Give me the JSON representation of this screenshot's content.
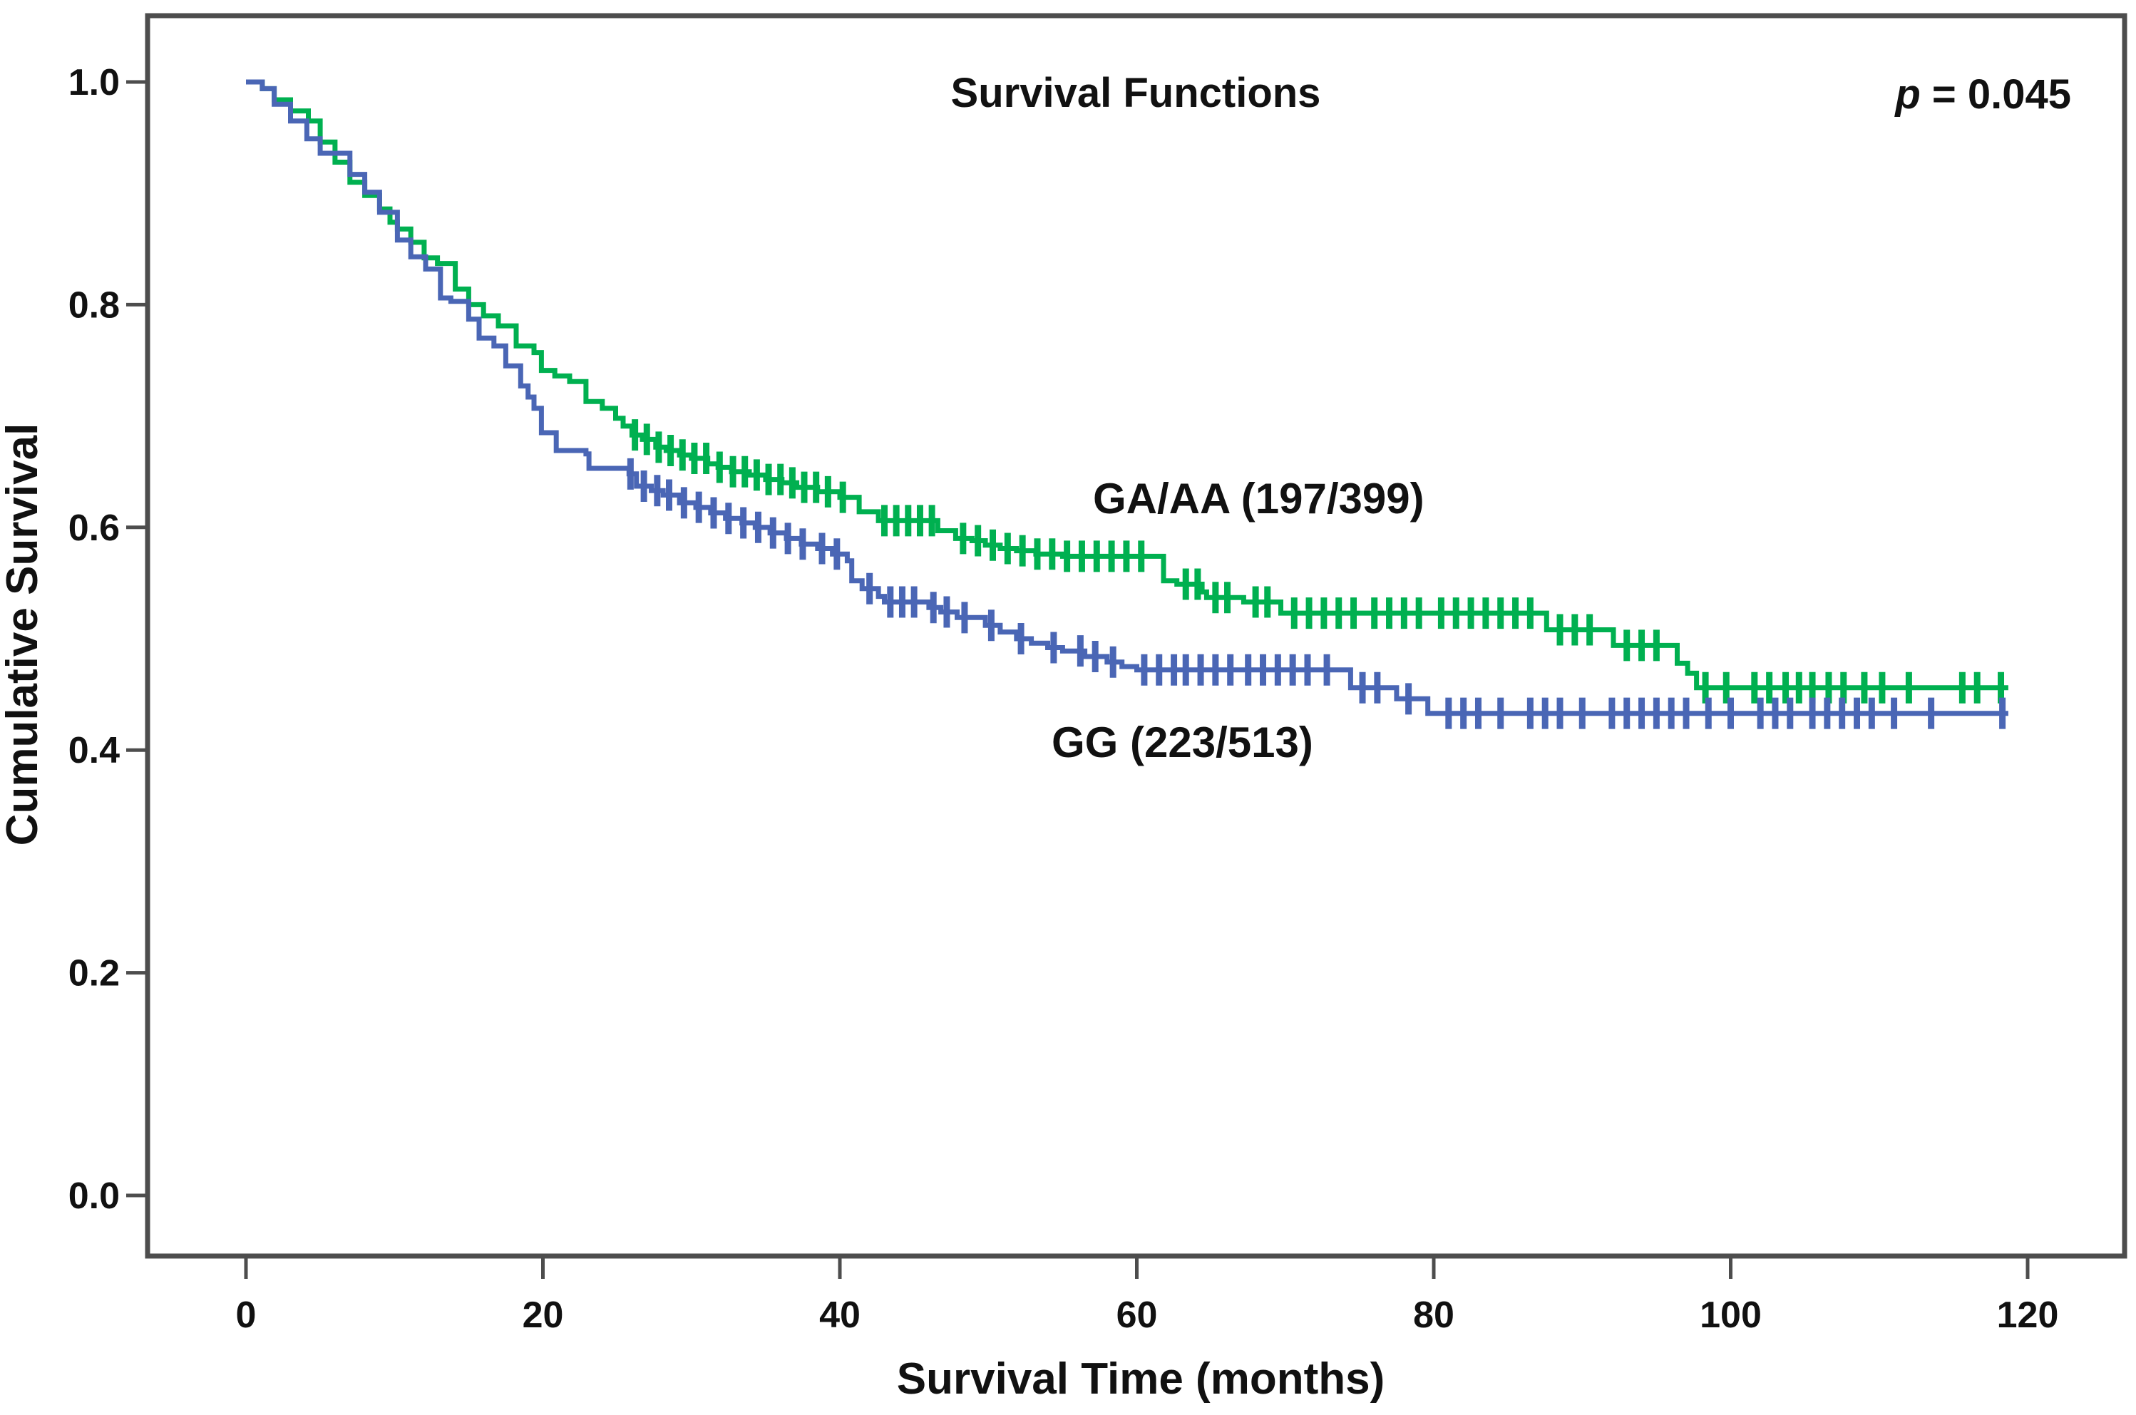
{
  "header": {
    "title": "Survival Functions",
    "p_italic": "p",
    "p_rest": " = 0.045"
  },
  "axes": {
    "x": {
      "label": "Survival Time (months)",
      "ticks": [
        "0",
        "20",
        "40",
        "60",
        "80",
        "100",
        "120"
      ]
    },
    "y": {
      "label": "Cumulative Survival",
      "ticks": [
        "1.0",
        "0.8",
        "0.6",
        "0.4",
        "0.2",
        "0.0"
      ]
    }
  },
  "colors": {
    "ga_aa_green": "#00b050",
    "gg_blue": "#4a66b5",
    "frame_gray": "#4d4d4d",
    "text_black": "#111111"
  },
  "chart_data": {
    "type": "line",
    "subtype": "kaplan-meier-step",
    "title": "Survival Functions",
    "annotation_p_value": "p = 0.045",
    "xlabel": "Survival Time (months)",
    "ylabel": "Cumulative Survival",
    "xlim": [
      0,
      120
    ],
    "ylim": [
      0.0,
      1.0
    ],
    "x_tick_values": [
      0,
      20,
      40,
      60,
      80,
      100,
      120
    ],
    "y_tick_values": [
      1.0,
      0.8,
      0.6,
      0.4,
      0.2,
      0.0
    ],
    "grid": false,
    "legend_position": "inline-curve-labels",
    "series": [
      {
        "name": "GA/AA",
        "label": "GA/AA (197/399)",
        "events_total": "197/399",
        "color": "#00b050",
        "points": [
          [
            0,
            1.0
          ],
          [
            1.1,
            0.994
          ],
          [
            1.9,
            0.984
          ],
          [
            3.0,
            0.974
          ],
          [
            4.2,
            0.965
          ],
          [
            5.0,
            0.946
          ],
          [
            6.0,
            0.928
          ],
          [
            7.0,
            0.91
          ],
          [
            8.0,
            0.898
          ],
          [
            9.0,
            0.886
          ],
          [
            9.7,
            0.874
          ],
          [
            10.2,
            0.868
          ],
          [
            11.1,
            0.856
          ],
          [
            12.0,
            0.842
          ],
          [
            12.9,
            0.837
          ],
          [
            14.1,
            0.814
          ],
          [
            15.0,
            0.8
          ],
          [
            16.0,
            0.79
          ],
          [
            17.0,
            0.781
          ],
          [
            18.2,
            0.763
          ],
          [
            19.4,
            0.757
          ],
          [
            19.9,
            0.741
          ],
          [
            20.8,
            0.736
          ],
          [
            21.8,
            0.731
          ],
          [
            22.9,
            0.713
          ],
          [
            24.0,
            0.707
          ],
          [
            24.9,
            0.698
          ],
          [
            25.4,
            0.691
          ],
          [
            26.0,
            0.683
          ],
          [
            26.7,
            0.679
          ],
          [
            27.6,
            0.672
          ],
          [
            28.3,
            0.669
          ],
          [
            29.2,
            0.665
          ],
          [
            30.0,
            0.662
          ],
          [
            31.1,
            0.657
          ],
          [
            31.8,
            0.654
          ],
          [
            32.7,
            0.65
          ],
          [
            33.9,
            0.647
          ],
          [
            35.0,
            0.643
          ],
          [
            36.1,
            0.64
          ],
          [
            37.1,
            0.636
          ],
          [
            38.5,
            0.632
          ],
          [
            40.0,
            0.627
          ],
          [
            41.3,
            0.614
          ],
          [
            42.6,
            0.606
          ],
          [
            46.6,
            0.597
          ],
          [
            47.8,
            0.59
          ],
          [
            48.9,
            0.588
          ],
          [
            49.8,
            0.584
          ],
          [
            50.8,
            0.581
          ],
          [
            51.9,
            0.579
          ],
          [
            53.2,
            0.576
          ],
          [
            55.0,
            0.574
          ],
          [
            61.8,
            0.552
          ],
          [
            62.7,
            0.549
          ],
          [
            64.4,
            0.542
          ],
          [
            64.7,
            0.537
          ],
          [
            67.2,
            0.533
          ],
          [
            69.7,
            0.523
          ],
          [
            87.6,
            0.508
          ],
          [
            92.1,
            0.494
          ],
          [
            96.4,
            0.478
          ],
          [
            97.1,
            0.469
          ],
          [
            97.7,
            0.456
          ],
          [
            118.7,
            0.456
          ]
        ],
        "censor_times": [
          26.2,
          27,
          27.8,
          28.6,
          29.4,
          30.2,
          31,
          31.9,
          32.8,
          33.6,
          34.4,
          35.2,
          36,
          36.8,
          37.6,
          38.4,
          39.2,
          40.2,
          43,
          43.8,
          44.6,
          45.4,
          46.2,
          48.3,
          49.3,
          50.3,
          51.3,
          52.3,
          53.3,
          54.3,
          55.3,
          56.3,
          57.3,
          58.3,
          59.3,
          60.3,
          63.3,
          64.1,
          65.3,
          66.1,
          68,
          68.8,
          70.6,
          71.6,
          72.6,
          73.6,
          74.6,
          76,
          77,
          78,
          79,
          80.5,
          81.5,
          82.5,
          83.5,
          84.5,
          85.5,
          86.5,
          88.5,
          89.5,
          90.5,
          93,
          94,
          95,
          98.3,
          99.7,
          101.6,
          102.6,
          103.7,
          104.6,
          105.5,
          106.6,
          107.6,
          109,
          110.2,
          112,
          115.6,
          116.6,
          118.2
        ]
      },
      {
        "name": "GG",
        "label": "GG (223/513)",
        "events_total": "223/513",
        "color": "#4a66b5",
        "points": [
          [
            0,
            1.0
          ],
          [
            1.1,
            0.994
          ],
          [
            1.9,
            0.98
          ],
          [
            3.0,
            0.965
          ],
          [
            4.1,
            0.949
          ],
          [
            5.0,
            0.936
          ],
          [
            7.0,
            0.917
          ],
          [
            8.0,
            0.901
          ],
          [
            9.0,
            0.883
          ],
          [
            10.2,
            0.858
          ],
          [
            11.1,
            0.843
          ],
          [
            12.1,
            0.832
          ],
          [
            13.1,
            0.806
          ],
          [
            13.8,
            0.803
          ],
          [
            15.0,
            0.787
          ],
          [
            15.7,
            0.77
          ],
          [
            16.7,
            0.763
          ],
          [
            17.5,
            0.745
          ],
          [
            18.5,
            0.727
          ],
          [
            19.0,
            0.717
          ],
          [
            19.4,
            0.707
          ],
          [
            19.9,
            0.685
          ],
          [
            20.9,
            0.669
          ],
          [
            22.9,
            0.666
          ],
          [
            23.1,
            0.653
          ],
          [
            25.8,
            0.648
          ],
          [
            26.3,
            0.637
          ],
          [
            27.3,
            0.633
          ],
          [
            28.1,
            0.629
          ],
          [
            29.2,
            0.622
          ],
          [
            30.3,
            0.618
          ],
          [
            31.3,
            0.613
          ],
          [
            32.3,
            0.608
          ],
          [
            33.4,
            0.604
          ],
          [
            34.3,
            0.6
          ],
          [
            35.3,
            0.595
          ],
          [
            36.4,
            0.59
          ],
          [
            37.4,
            0.585
          ],
          [
            38.5,
            0.581
          ],
          [
            39.5,
            0.576
          ],
          [
            40.5,
            0.57
          ],
          [
            40.8,
            0.552
          ],
          [
            41.5,
            0.545
          ],
          [
            42.6,
            0.538
          ],
          [
            43.0,
            0.533
          ],
          [
            46.0,
            0.528
          ],
          [
            46.8,
            0.524
          ],
          [
            47.9,
            0.519
          ],
          [
            49.8,
            0.512
          ],
          [
            50.8,
            0.506
          ],
          [
            51.9,
            0.5
          ],
          [
            52.9,
            0.496
          ],
          [
            54.0,
            0.492
          ],
          [
            55.0,
            0.489
          ],
          [
            56.5,
            0.484
          ],
          [
            58.0,
            0.479
          ],
          [
            59.0,
            0.475
          ],
          [
            60.0,
            0.472
          ],
          [
            74.4,
            0.456
          ],
          [
            77.5,
            0.446
          ],
          [
            79.6,
            0.433
          ],
          [
            118.7,
            0.433
          ]
        ],
        "censor_times": [
          25.9,
          26.8,
          27.7,
          28.5,
          29.5,
          30.5,
          31.5,
          32.5,
          33.5,
          34.5,
          35.5,
          36.5,
          37.5,
          38.8,
          39.8,
          42,
          43.4,
          44.2,
          45,
          46.3,
          47.2,
          48.4,
          50.2,
          52.2,
          54.4,
          56.2,
          57.2,
          58.4,
          60.5,
          61.5,
          62.5,
          63.3,
          64.3,
          65.3,
          66.3,
          67.5,
          68.5,
          69.5,
          70.5,
          71.5,
          72.8,
          75.2,
          76.2,
          78.3,
          81,
          82,
          83,
          84.5,
          86.5,
          87.5,
          88.5,
          90,
          92,
          93,
          94,
          95,
          96,
          97,
          98.5,
          100,
          102,
          103,
          104,
          105.5,
          106.5,
          107.5,
          108.5,
          109.5,
          111,
          113.5,
          118.3
        ]
      }
    ]
  }
}
